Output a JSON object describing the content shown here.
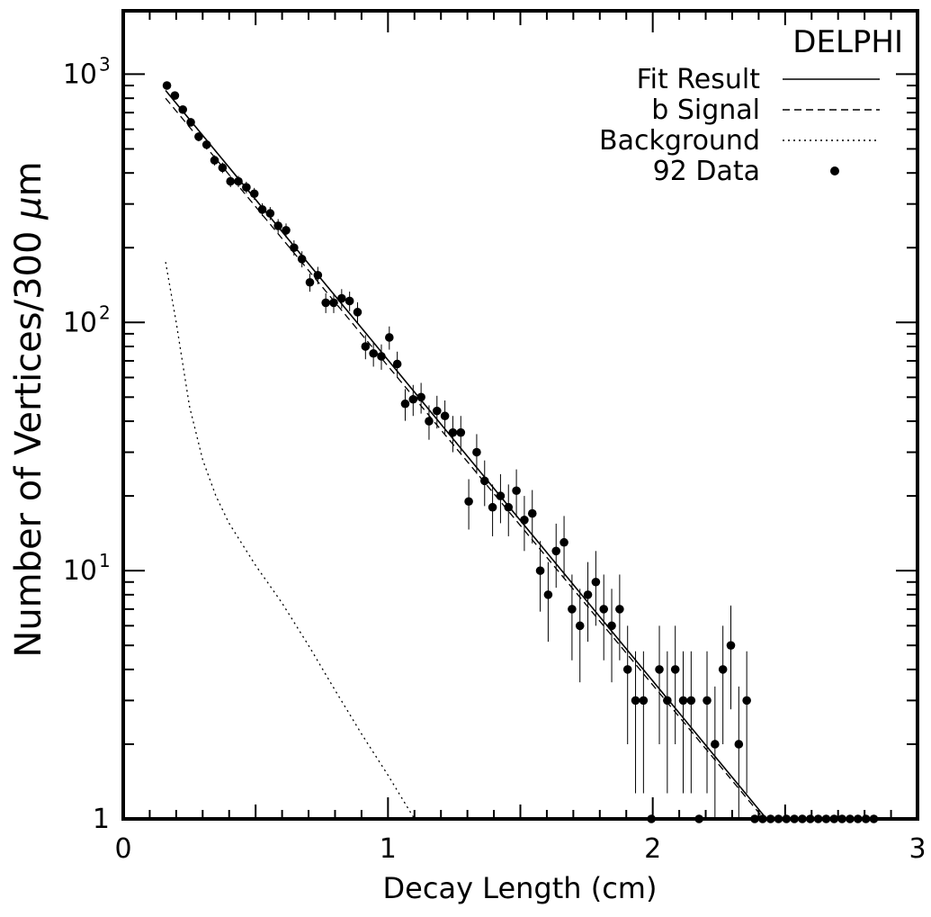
{
  "chart_data": {
    "type": "scatter",
    "title": "DELPHI",
    "xlabel": "Decay Length (cm)",
    "ylabel_prefix": "Number of Vertices/300 ",
    "ylabel_mu": "μ",
    "ylabel_unit": "m",
    "xlim": [
      0,
      3
    ],
    "ylim": [
      1,
      1800
    ],
    "yscale": "log",
    "x_ticks": [
      {
        "value": 0,
        "label": "0"
      },
      {
        "value": 1,
        "label": "1"
      },
      {
        "value": 2,
        "label": "2"
      },
      {
        "value": 3,
        "label": "3"
      }
    ],
    "y_ticks": [
      {
        "value": 1,
        "label": "1"
      },
      {
        "value": 10,
        "base": "10",
        "exp": "1"
      },
      {
        "value": 100,
        "base": "10",
        "exp": "2"
      },
      {
        "value": 1000,
        "base": "10",
        "exp": "3"
      }
    ],
    "legend": {
      "position": "top-right",
      "entries": [
        {
          "label": "Fit Result",
          "style": "solid"
        },
        {
          "label": "b Signal",
          "style": "dashed"
        },
        {
          "label": "Background",
          "style": "dotted"
        },
        {
          "label": "92 Data",
          "style": "marker"
        }
      ]
    },
    "series": [
      {
        "name": "Fit Result",
        "style": "solid",
        "x": [
          0.16,
          2.43
        ],
        "y": [
          860,
          1
        ]
      },
      {
        "name": "b Signal",
        "style": "dashed",
        "x": [
          0.16,
          2.42
        ],
        "y": [
          800,
          1
        ]
      },
      {
        "name": "Background",
        "style": "dotted",
        "x": [
          0.16,
          0.2,
          0.25,
          0.3,
          0.35,
          0.4,
          0.5,
          0.6,
          0.7,
          0.8,
          0.9,
          1.0,
          1.1
        ],
        "y": [
          175,
          100,
          46,
          28,
          20,
          15.5,
          10.5,
          7.4,
          5.0,
          3.3,
          2.2,
          1.5,
          1.0
        ]
      },
      {
        "name": "92 Data",
        "style": "marker",
        "x": [
          0.165,
          0.195,
          0.225,
          0.255,
          0.285,
          0.315,
          0.345,
          0.375,
          0.405,
          0.435,
          0.465,
          0.495,
          0.525,
          0.555,
          0.585,
          0.615,
          0.645,
          0.675,
          0.705,
          0.735,
          0.765,
          0.795,
          0.825,
          0.855,
          0.885,
          0.915,
          0.945,
          0.975,
          1.005,
          1.035,
          1.065,
          1.095,
          1.125,
          1.155,
          1.185,
          1.215,
          1.245,
          1.275,
          1.305,
          1.335,
          1.365,
          1.395,
          1.425,
          1.455,
          1.485,
          1.515,
          1.545,
          1.575,
          1.605,
          1.635,
          1.665,
          1.695,
          1.725,
          1.755,
          1.785,
          1.815,
          1.845,
          1.875,
          1.905,
          1.935,
          1.965,
          1.995,
          2.025,
          2.055,
          2.085,
          2.115,
          2.145,
          2.175,
          2.205,
          2.235,
          2.265,
          2.295,
          2.325,
          2.355,
          2.385,
          2.415,
          2.445,
          2.475,
          2.505,
          2.535,
          2.565,
          2.595,
          2.625,
          2.655,
          2.685,
          2.715,
          2.745,
          2.775,
          2.805,
          2.835
        ],
        "y": [
          900,
          820,
          720,
          640,
          560,
          520,
          450,
          420,
          370,
          370,
          350,
          330,
          285,
          275,
          245,
          235,
          200,
          180,
          145,
          155,
          120,
          120,
          125,
          122,
          110,
          80,
          75,
          73,
          87,
          68,
          47,
          49,
          50,
          40,
          44,
          42,
          36,
          36,
          19,
          30,
          23,
          18,
          20,
          18,
          21,
          16,
          17,
          10,
          8,
          12,
          13,
          7,
          6,
          8,
          9,
          7,
          6,
          7,
          4,
          3,
          3,
          0,
          4,
          3,
          4,
          3,
          3,
          0,
          3,
          2,
          4,
          5,
          2,
          3,
          0,
          0,
          0,
          0,
          0,
          0,
          0,
          0,
          0,
          0,
          0,
          0,
          0,
          0,
          0,
          0
        ]
      }
    ]
  }
}
